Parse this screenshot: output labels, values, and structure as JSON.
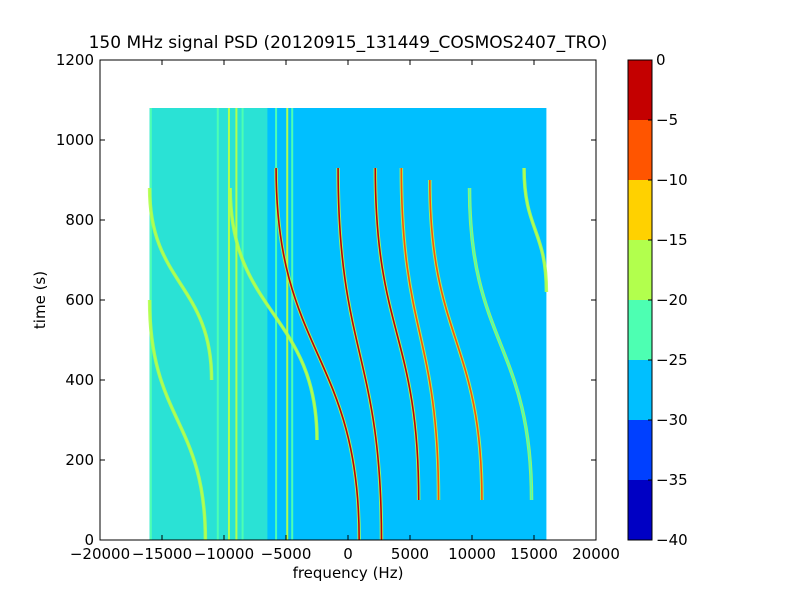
{
  "chart_data": {
    "type": "heatmap",
    "title": "150 MHz signal PSD (20120915_131449_COSMOS2407_TRO)",
    "xlabel": "frequency (Hz)",
    "ylabel": "time (s)",
    "xlim": [
      -20000,
      20000
    ],
    "ylim": [
      0,
      1200
    ],
    "xticks": [
      -20000,
      -15000,
      -10000,
      -5000,
      0,
      5000,
      10000,
      15000,
      20000
    ],
    "xtick_labels": [
      "−20000",
      "−15000",
      "−10000",
      "−5000",
      "0",
      "5000",
      "10000",
      "15000",
      "20000"
    ],
    "yticks": [
      0,
      200,
      400,
      600,
      800,
      1000,
      1200
    ],
    "ytick_labels": [
      "0",
      "200",
      "400",
      "600",
      "800",
      "1000",
      "1200"
    ],
    "data_extent": {
      "x": [
        -16000,
        16000
      ],
      "y": [
        0,
        1080
      ]
    },
    "grid": false,
    "colorbar": {
      "range": [
        -40,
        0
      ],
      "ticks": [
        0,
        -5,
        -10,
        -15,
        -20,
        -25,
        -30,
        -35,
        -40
      ],
      "tick_labels": [
        "0",
        "−5",
        "−10",
        "−15",
        "−20",
        "−25",
        "−30",
        "−35",
        "−40"
      ],
      "levels": [
        {
          "from": -40,
          "to": -35,
          "color": "#0000c4"
        },
        {
          "from": -35,
          "to": -30,
          "color": "#0040ff"
        },
        {
          "from": -30,
          "to": -25,
          "color": "#00bfff"
        },
        {
          "from": -25,
          "to": -20,
          "color": "#4dffb2"
        },
        {
          "from": -20,
          "to": -15,
          "color": "#b2ff4d"
        },
        {
          "from": -15,
          "to": -10,
          "color": "#ffd100"
        },
        {
          "from": -10,
          "to": -5,
          "color": "#ff5500"
        },
        {
          "from": -5,
          "to": 0,
          "color": "#c40000"
        }
      ]
    },
    "background_level": -27,
    "noise_floor_band": {
      "x": [
        -16000,
        -6500
      ],
      "level": -23
    },
    "vertical_lines": [
      {
        "x": -15900,
        "level": -23
      },
      {
        "x": -10500,
        "level": -23
      },
      {
        "x": -9600,
        "level": -18
      },
      {
        "x": -9000,
        "level": -18
      },
      {
        "x": -8500,
        "level": -23
      },
      {
        "x": -5800,
        "level": -23
      },
      {
        "x": -4900,
        "level": -18
      },
      {
        "x": -4500,
        "level": -23
      }
    ],
    "doppler_tracks": [
      {
        "x_start": -16000,
        "y_start": 880,
        "x_end": -11000,
        "y_end": 400,
        "level": -18
      },
      {
        "x_start": -16000,
        "y_start": 600,
        "x_end": -11500,
        "y_end": 0,
        "level": -18
      },
      {
        "x_start": -9500,
        "y_start": 880,
        "x_end": -2500,
        "y_end": 250,
        "level": -18
      },
      {
        "x_start": -5800,
        "y_start": 930,
        "x_end": 900,
        "y_end": 0,
        "level": -3
      },
      {
        "x_start": -800,
        "y_start": 930,
        "x_end": 2700,
        "y_end": 0,
        "level": -3
      },
      {
        "x_start": 2200,
        "y_start": 930,
        "x_end": 5700,
        "y_end": 100,
        "level": -3
      },
      {
        "x_start": 4300,
        "y_start": 930,
        "x_end": 7300,
        "y_end": 100,
        "level": -8
      },
      {
        "x_start": 6600,
        "y_start": 900,
        "x_end": 10800,
        "y_end": 100,
        "level": -8
      },
      {
        "x_start": 9800,
        "y_start": 880,
        "x_end": 14800,
        "y_end": 100,
        "level": -23
      },
      {
        "x_start": 14200,
        "y_start": 930,
        "x_end": 16000,
        "y_end": 620,
        "level": -18
      }
    ]
  }
}
